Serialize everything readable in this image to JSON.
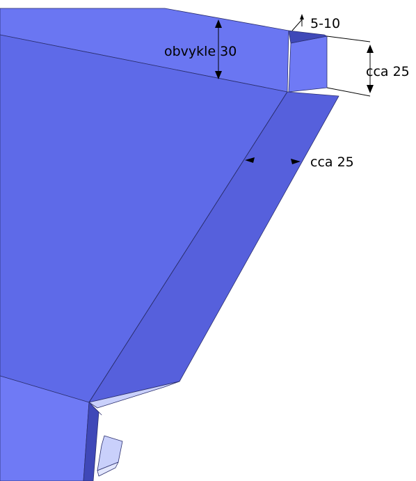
{
  "labels": {
    "top_height": "obvykle 30",
    "overlap_small": "5-10",
    "side_flange_height": "cca 25",
    "bevel_width": "cca 25"
  },
  "colors": {
    "main_face": "#5e6ae8",
    "top_face": "#6a76f2",
    "bevel_face": "#5660dc",
    "side_face": "#6f7af5",
    "dark_face": "#3f48b8",
    "light_face": "#c9d0fb",
    "lighter_face": "#e2e6fd",
    "edge": "#2b2f6e",
    "text": "#000000"
  }
}
